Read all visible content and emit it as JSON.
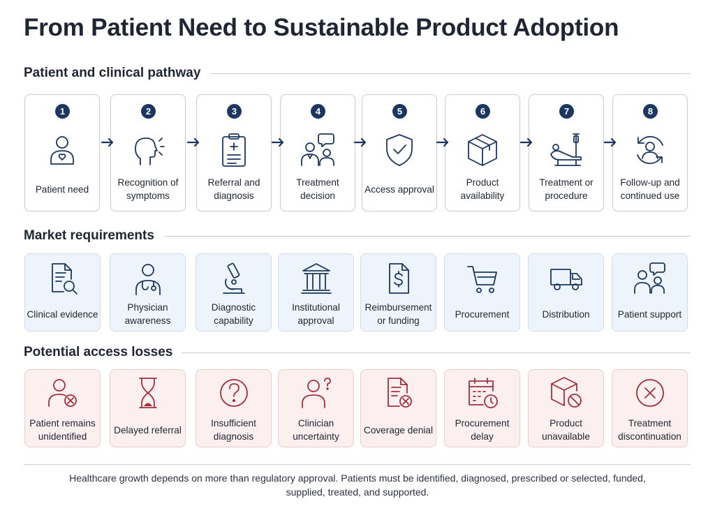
{
  "title": "From Patient Need to Sustainable Product Adoption",
  "sections": {
    "pathway": {
      "heading": "Patient and clinical pathway",
      "steps": [
        {
          "number": "1",
          "label": "Patient need",
          "icon": "person-heart-icon"
        },
        {
          "number": "2",
          "label": "Recognition of symptoms",
          "icon": "head-signal-icon"
        },
        {
          "number": "3",
          "label": "Referral and diagnosis",
          "icon": "clipboard-icon"
        },
        {
          "number": "4",
          "label": "Treatment decision",
          "icon": "doctor-patient-chat-icon"
        },
        {
          "number": "5",
          "label": "Access approval",
          "icon": "shield-check-icon"
        },
        {
          "number": "6",
          "label": "Product availability",
          "icon": "box-icon"
        },
        {
          "number": "7",
          "label": "Treatment or procedure",
          "icon": "reclined-iv-icon"
        },
        {
          "number": "8",
          "label": "Follow-up and continued use",
          "icon": "person-cycle-icon"
        }
      ]
    },
    "market": {
      "heading": "Market requirements",
      "items": [
        {
          "label": "Clinical evidence",
          "icon": "document-magnifier-icon"
        },
        {
          "label": "Physician awareness",
          "icon": "physician-icon"
        },
        {
          "label": "Diagnostic capability",
          "icon": "microscope-icon"
        },
        {
          "label": "Institutional approval",
          "icon": "institution-icon"
        },
        {
          "label": "Reimbursement or funding",
          "icon": "dollar-document-icon"
        },
        {
          "label": "Procurement",
          "icon": "shopping-cart-icon"
        },
        {
          "label": "Distribution",
          "icon": "truck-icon"
        },
        {
          "label": "Patient support",
          "icon": "people-chat-icon"
        }
      ]
    },
    "losses": {
      "heading": "Potential access losses",
      "items": [
        {
          "label": "Patient remains unidentified",
          "icon": "person-x-icon"
        },
        {
          "label": "Delayed referral",
          "icon": "hourglass-icon"
        },
        {
          "label": "Insufficient diagnosis",
          "icon": "question-circle-icon"
        },
        {
          "label": "Clinician uncertainty",
          "icon": "person-question-icon"
        },
        {
          "label": "Coverage denial",
          "icon": "document-x-icon"
        },
        {
          "label": "Procurement delay",
          "icon": "calendar-clock-icon"
        },
        {
          "label": "Product unavailable",
          "icon": "box-blocked-icon"
        },
        {
          "label": "Treatment discontinuation",
          "icon": "circle-x-icon"
        }
      ]
    }
  },
  "footer": "Healthcare growth depends on more than regulatory approval. Patients must be identified, diagnosed, prescribed or selected, funded, supplied, treated, and supported.",
  "colors": {
    "navy": "#1b3660",
    "loss_red": "#a4303a",
    "market_bg": "#eef4fc",
    "loss_bg": "#fcefef"
  }
}
